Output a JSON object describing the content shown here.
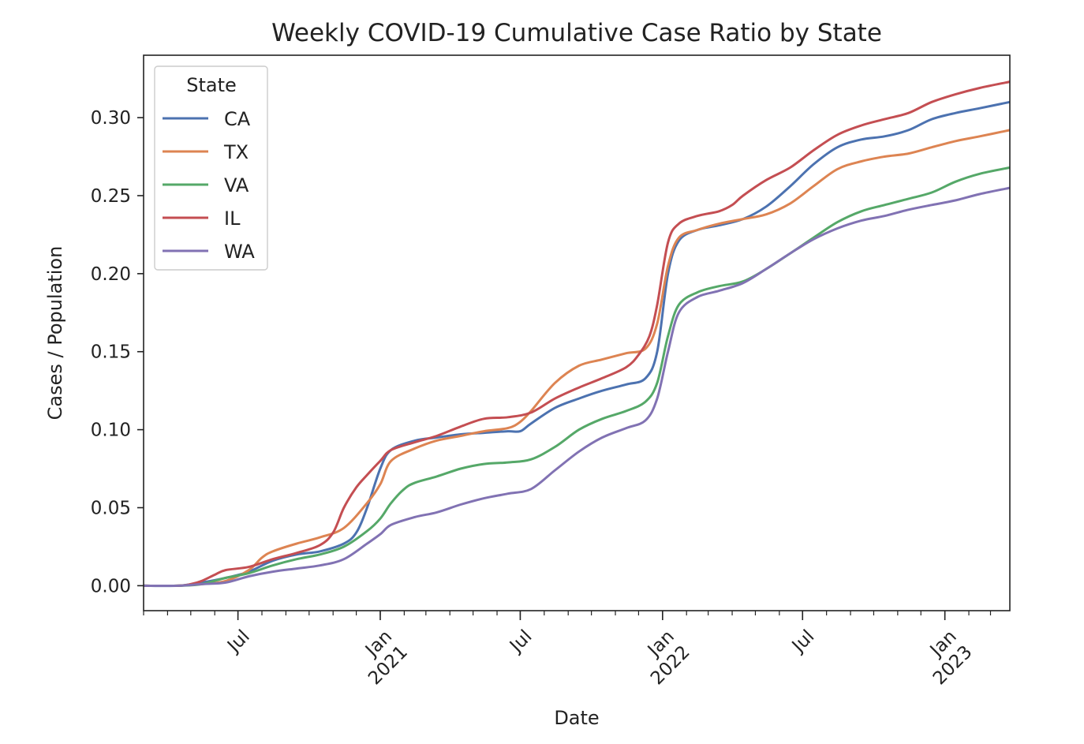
{
  "chart_data": {
    "type": "line",
    "title": "Weekly COVID-19 Cumulative Case Ratio by State",
    "xlabel": "Date",
    "ylabel": "Cases / Population",
    "xlim": [
      "2020-03-01",
      "2023-03-26"
    ],
    "ylim": [
      -0.016,
      0.34
    ],
    "yticks": [
      0.0,
      0.05,
      0.1,
      0.15,
      0.2,
      0.25,
      0.3
    ],
    "ytick_labels": [
      "0.00",
      "0.05",
      "0.10",
      "0.15",
      "0.20",
      "0.25",
      "0.30"
    ],
    "xticks": [
      {
        "date": "2020-07-01",
        "label": "Jul"
      },
      {
        "date": "2021-01-01",
        "label": "Jan\n2021"
      },
      {
        "date": "2021-07-01",
        "label": "Jul"
      },
      {
        "date": "2022-01-01",
        "label": "Jan\n2022"
      },
      {
        "date": "2022-07-01",
        "label": "Jul"
      },
      {
        "date": "2023-01-01",
        "label": "Jan\n2023"
      }
    ],
    "grid": false,
    "legend": {
      "title": "State",
      "placement": "upper-left"
    },
    "series": [
      {
        "name": "CA",
        "color": "#4c72b0",
        "points": [
          [
            "2020-03-01",
            0.0
          ],
          [
            "2020-04-15",
            0.0
          ],
          [
            "2020-05-15",
            0.002
          ],
          [
            "2020-06-15",
            0.005
          ],
          [
            "2020-07-15",
            0.009
          ],
          [
            "2020-08-15",
            0.016
          ],
          [
            "2020-09-15",
            0.02
          ],
          [
            "2020-10-15",
            0.022
          ],
          [
            "2020-11-15",
            0.027
          ],
          [
            "2020-12-01",
            0.034
          ],
          [
            "2020-12-15",
            0.05
          ],
          [
            "2021-01-01",
            0.075
          ],
          [
            "2021-01-15",
            0.087
          ],
          [
            "2021-02-15",
            0.093
          ],
          [
            "2021-03-15",
            0.095
          ],
          [
            "2021-04-15",
            0.097
          ],
          [
            "2021-05-15",
            0.098
          ],
          [
            "2021-06-15",
            0.099
          ],
          [
            "2021-07-01",
            0.099
          ],
          [
            "2021-07-15",
            0.104
          ],
          [
            "2021-08-15",
            0.114
          ],
          [
            "2021-09-15",
            0.12
          ],
          [
            "2021-10-15",
            0.125
          ],
          [
            "2021-11-15",
            0.129
          ],
          [
            "2021-12-10",
            0.133
          ],
          [
            "2021-12-25",
            0.15
          ],
          [
            "2022-01-08",
            0.2
          ],
          [
            "2022-01-22",
            0.221
          ],
          [
            "2022-02-15",
            0.228
          ],
          [
            "2022-03-15",
            0.231
          ],
          [
            "2022-04-15",
            0.235
          ],
          [
            "2022-05-15",
            0.243
          ],
          [
            "2022-06-15",
            0.256
          ],
          [
            "2022-07-15",
            0.27
          ],
          [
            "2022-08-15",
            0.281
          ],
          [
            "2022-09-15",
            0.286
          ],
          [
            "2022-10-15",
            0.288
          ],
          [
            "2022-11-15",
            0.292
          ],
          [
            "2022-12-15",
            0.299
          ],
          [
            "2023-01-15",
            0.303
          ],
          [
            "2023-02-15",
            0.306
          ],
          [
            "2023-03-26",
            0.31
          ]
        ]
      },
      {
        "name": "TX",
        "color": "#dd8452",
        "points": [
          [
            "2020-03-01",
            0.0
          ],
          [
            "2020-04-15",
            0.0
          ],
          [
            "2020-05-15",
            0.001
          ],
          [
            "2020-06-15",
            0.003
          ],
          [
            "2020-07-15",
            0.01
          ],
          [
            "2020-08-01",
            0.018
          ],
          [
            "2020-08-15",
            0.022
          ],
          [
            "2020-09-15",
            0.027
          ],
          [
            "2020-10-15",
            0.031
          ],
          [
            "2020-11-15",
            0.037
          ],
          [
            "2020-12-15",
            0.053
          ],
          [
            "2021-01-01",
            0.065
          ],
          [
            "2021-01-15",
            0.08
          ],
          [
            "2021-02-15",
            0.088
          ],
          [
            "2021-03-15",
            0.093
          ],
          [
            "2021-04-15",
            0.096
          ],
          [
            "2021-05-15",
            0.099
          ],
          [
            "2021-06-15",
            0.101
          ],
          [
            "2021-07-01",
            0.105
          ],
          [
            "2021-07-15",
            0.112
          ],
          [
            "2021-08-15",
            0.13
          ],
          [
            "2021-09-15",
            0.141
          ],
          [
            "2021-10-15",
            0.145
          ],
          [
            "2021-11-15",
            0.149
          ],
          [
            "2021-12-10",
            0.152
          ],
          [
            "2021-12-25",
            0.168
          ],
          [
            "2022-01-08",
            0.205
          ],
          [
            "2022-01-22",
            0.223
          ],
          [
            "2022-02-15",
            0.228
          ],
          [
            "2022-03-15",
            0.232
          ],
          [
            "2022-04-15",
            0.235
          ],
          [
            "2022-05-15",
            0.238
          ],
          [
            "2022-06-15",
            0.245
          ],
          [
            "2022-07-15",
            0.256
          ],
          [
            "2022-08-15",
            0.267
          ],
          [
            "2022-09-15",
            0.272
          ],
          [
            "2022-10-15",
            0.275
          ],
          [
            "2022-11-15",
            0.277
          ],
          [
            "2022-12-15",
            0.281
          ],
          [
            "2023-01-15",
            0.285
          ],
          [
            "2023-02-15",
            0.288
          ],
          [
            "2023-03-26",
            0.292
          ]
        ]
      },
      {
        "name": "VA",
        "color": "#55a868",
        "points": [
          [
            "2020-03-01",
            0.0
          ],
          [
            "2020-04-15",
            0.0
          ],
          [
            "2020-05-15",
            0.001
          ],
          [
            "2020-06-15",
            0.005
          ],
          [
            "2020-07-15",
            0.008
          ],
          [
            "2020-08-15",
            0.013
          ],
          [
            "2020-09-15",
            0.017
          ],
          [
            "2020-10-15",
            0.02
          ],
          [
            "2020-11-15",
            0.025
          ],
          [
            "2020-12-15",
            0.035
          ],
          [
            "2021-01-01",
            0.043
          ],
          [
            "2021-01-15",
            0.053
          ],
          [
            "2021-02-01",
            0.062
          ],
          [
            "2021-02-15",
            0.066
          ],
          [
            "2021-03-15",
            0.07
          ],
          [
            "2021-04-15",
            0.075
          ],
          [
            "2021-05-15",
            0.078
          ],
          [
            "2021-06-15",
            0.079
          ],
          [
            "2021-07-15",
            0.081
          ],
          [
            "2021-08-15",
            0.089
          ],
          [
            "2021-09-15",
            0.1
          ],
          [
            "2021-10-15",
            0.107
          ],
          [
            "2021-11-15",
            0.112
          ],
          [
            "2021-12-10",
            0.118
          ],
          [
            "2021-12-25",
            0.13
          ],
          [
            "2022-01-08",
            0.16
          ],
          [
            "2022-01-22",
            0.18
          ],
          [
            "2022-02-15",
            0.188
          ],
          [
            "2022-03-15",
            0.192
          ],
          [
            "2022-04-15",
            0.195
          ],
          [
            "2022-05-15",
            0.203
          ],
          [
            "2022-06-15",
            0.213
          ],
          [
            "2022-07-15",
            0.223
          ],
          [
            "2022-08-15",
            0.233
          ],
          [
            "2022-09-15",
            0.24
          ],
          [
            "2022-10-15",
            0.244
          ],
          [
            "2022-11-15",
            0.248
          ],
          [
            "2022-12-15",
            0.252
          ],
          [
            "2023-01-15",
            0.259
          ],
          [
            "2023-02-15",
            0.264
          ],
          [
            "2023-03-26",
            0.268
          ]
        ]
      },
      {
        "name": "IL",
        "color": "#c44e52",
        "points": [
          [
            "2020-03-01",
            0.0
          ],
          [
            "2020-04-15",
            0.0
          ],
          [
            "2020-05-01",
            0.001
          ],
          [
            "2020-05-15",
            0.003
          ],
          [
            "2020-06-01",
            0.007
          ],
          [
            "2020-06-15",
            0.01
          ],
          [
            "2020-07-15",
            0.012
          ],
          [
            "2020-08-15",
            0.017
          ],
          [
            "2020-09-15",
            0.021
          ],
          [
            "2020-10-15",
            0.026
          ],
          [
            "2020-11-01",
            0.034
          ],
          [
            "2020-11-15",
            0.05
          ],
          [
            "2020-12-01",
            0.063
          ],
          [
            "2020-12-15",
            0.071
          ],
          [
            "2021-01-01",
            0.08
          ],
          [
            "2021-01-15",
            0.087
          ],
          [
            "2021-02-15",
            0.092
          ],
          [
            "2021-03-15",
            0.096
          ],
          [
            "2021-04-15",
            0.102
          ],
          [
            "2021-05-15",
            0.107
          ],
          [
            "2021-06-15",
            0.108
          ],
          [
            "2021-07-15",
            0.111
          ],
          [
            "2021-08-15",
            0.12
          ],
          [
            "2021-09-15",
            0.127
          ],
          [
            "2021-10-15",
            0.133
          ],
          [
            "2021-11-15",
            0.14
          ],
          [
            "2021-12-01",
            0.148
          ],
          [
            "2021-12-15",
            0.16
          ],
          [
            "2021-12-25",
            0.18
          ],
          [
            "2022-01-08",
            0.22
          ],
          [
            "2022-01-22",
            0.232
          ],
          [
            "2022-02-15",
            0.237
          ],
          [
            "2022-03-15",
            0.24
          ],
          [
            "2022-04-01",
            0.244
          ],
          [
            "2022-04-15",
            0.25
          ],
          [
            "2022-05-15",
            0.26
          ],
          [
            "2022-06-15",
            0.268
          ],
          [
            "2022-07-15",
            0.279
          ],
          [
            "2022-08-15",
            0.289
          ],
          [
            "2022-09-15",
            0.295
          ],
          [
            "2022-10-15",
            0.299
          ],
          [
            "2022-11-15",
            0.303
          ],
          [
            "2022-12-15",
            0.31
          ],
          [
            "2023-01-15",
            0.315
          ],
          [
            "2023-02-15",
            0.319
          ],
          [
            "2023-03-26",
            0.323
          ]
        ]
      },
      {
        "name": "WA",
        "color": "#8172b3",
        "points": [
          [
            "2020-03-01",
            0.0
          ],
          [
            "2020-04-15",
            0.0
          ],
          [
            "2020-05-15",
            0.001
          ],
          [
            "2020-06-15",
            0.002
          ],
          [
            "2020-07-15",
            0.006
          ],
          [
            "2020-08-15",
            0.009
          ],
          [
            "2020-09-15",
            0.011
          ],
          [
            "2020-10-15",
            0.013
          ],
          [
            "2020-11-15",
            0.017
          ],
          [
            "2020-12-15",
            0.027
          ],
          [
            "2021-01-01",
            0.033
          ],
          [
            "2021-01-15",
            0.039
          ],
          [
            "2021-02-15",
            0.044
          ],
          [
            "2021-03-15",
            0.047
          ],
          [
            "2021-04-15",
            0.052
          ],
          [
            "2021-05-15",
            0.056
          ],
          [
            "2021-06-15",
            0.059
          ],
          [
            "2021-07-15",
            0.062
          ],
          [
            "2021-08-15",
            0.074
          ],
          [
            "2021-09-15",
            0.086
          ],
          [
            "2021-10-15",
            0.095
          ],
          [
            "2021-11-15",
            0.101
          ],
          [
            "2021-12-10",
            0.106
          ],
          [
            "2021-12-25",
            0.12
          ],
          [
            "2022-01-08",
            0.15
          ],
          [
            "2022-01-22",
            0.175
          ],
          [
            "2022-02-15",
            0.185
          ],
          [
            "2022-03-15",
            0.189
          ],
          [
            "2022-04-15",
            0.194
          ],
          [
            "2022-05-15",
            0.203
          ],
          [
            "2022-06-15",
            0.213
          ],
          [
            "2022-07-15",
            0.222
          ],
          [
            "2022-08-15",
            0.229
          ],
          [
            "2022-09-15",
            0.234
          ],
          [
            "2022-10-15",
            0.237
          ],
          [
            "2022-11-15",
            0.241
          ],
          [
            "2022-12-15",
            0.244
          ],
          [
            "2023-01-15",
            0.247
          ],
          [
            "2023-02-15",
            0.251
          ],
          [
            "2023-03-26",
            0.255
          ]
        ]
      }
    ]
  }
}
